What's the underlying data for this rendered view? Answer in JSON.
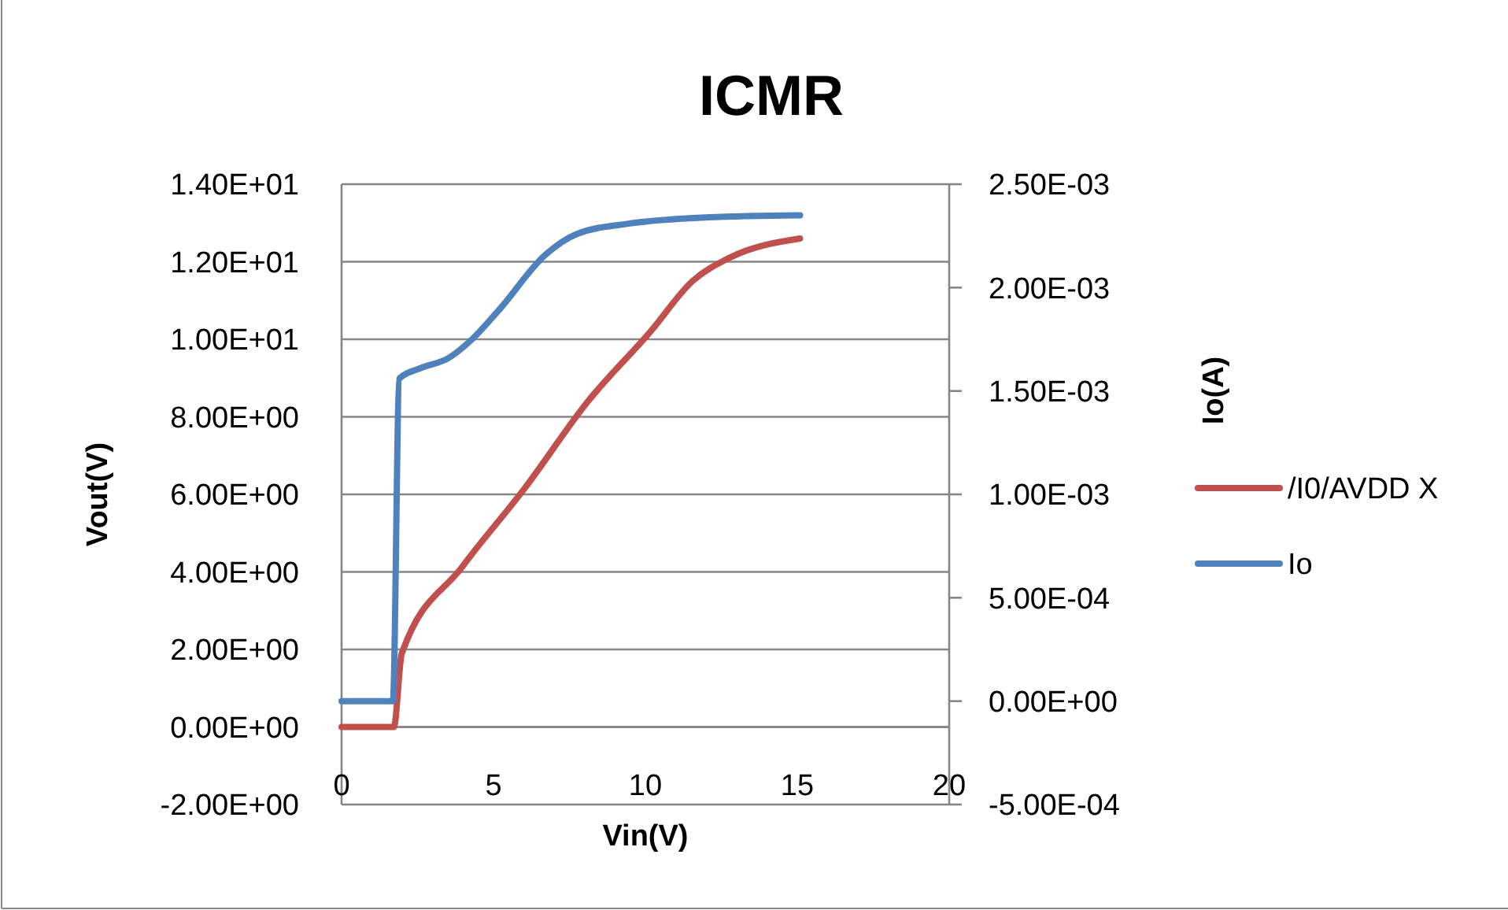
{
  "chart_data": {
    "type": "line",
    "title": "ICMR",
    "xlabel": "Vin(V)",
    "ylabel": "Vout(V)",
    "y2label": "Io(A)",
    "xlim": [
      0,
      20
    ],
    "xticks": [
      0,
      5,
      10,
      15,
      20
    ],
    "ylim": [
      -2,
      14
    ],
    "yticks": [
      {
        "value": -2,
        "label": "-2.00E+00"
      },
      {
        "value": 0,
        "label": "0.00E+00"
      },
      {
        "value": 2,
        "label": "2.00E+00"
      },
      {
        "value": 4,
        "label": "4.00E+00"
      },
      {
        "value": 6,
        "label": "6.00E+00"
      },
      {
        "value": 8,
        "label": "8.00E+00"
      },
      {
        "value": 10,
        "label": "1.00E+01"
      },
      {
        "value": 12,
        "label": "1.20E+01"
      },
      {
        "value": 14,
        "label": "1.40E+01"
      }
    ],
    "y2lim": [
      -0.0005,
      0.0025
    ],
    "y2ticks": [
      {
        "value": -0.0005,
        "label": "-5.00E-04"
      },
      {
        "value": 0,
        "label": "0.00E+00"
      },
      {
        "value": 0.0005,
        "label": "5.00E-04"
      },
      {
        "value": 0.001,
        "label": "1.00E-03"
      },
      {
        "value": 0.0015,
        "label": "1.50E-03"
      },
      {
        "value": 0.002,
        "label": "2.00E-03"
      },
      {
        "value": 0.0025,
        "label": "2.50E-03"
      }
    ],
    "grid": "y",
    "legend": "right",
    "series": [
      {
        "name": "/I0/AVDD X",
        "color": "#c0504d",
        "x": [
          0,
          1.72,
          1.98,
          3.97,
          6.03,
          8.1,
          10.17,
          11.55,
          12.76,
          15.09
        ],
        "values": [
          0,
          0,
          1.89,
          4.13,
          6.16,
          8.39,
          10.2,
          11.5,
          12.1,
          12.6
        ]
      },
      {
        "name": "Io",
        "color": "#4f81bd",
        "axis": "y2",
        "x": [
          0,
          1.69,
          1.9,
          2.59,
          3.53,
          4.22,
          5.17,
          6.72,
          7.76,
          9.48,
          12.07,
          15.09
        ],
        "values": [
          0,
          0,
          0.00156,
          0.00161,
          0.00166,
          0.00174,
          0.00189,
          0.00216,
          0.00226,
          0.00231,
          0.00234,
          0.00235
        ]
      }
    ]
  }
}
